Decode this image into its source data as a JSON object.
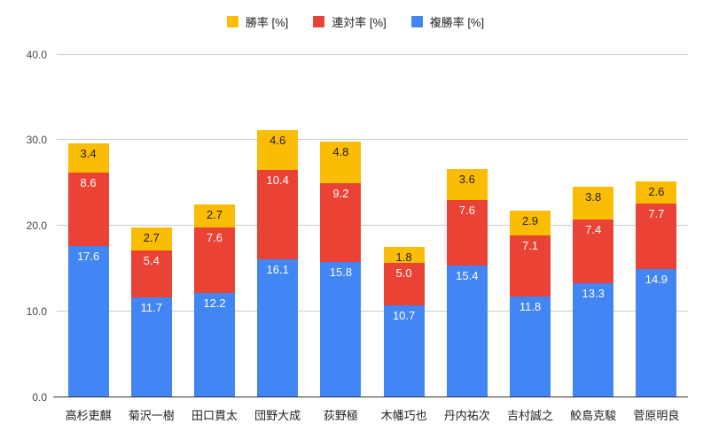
{
  "chart_data": {
    "type": "bar",
    "stacked": true,
    "title": "",
    "xlabel": "",
    "ylabel": "",
    "ylim": [
      0,
      40
    ],
    "yticks": [
      "0.0",
      "10.0",
      "20.0",
      "30.0",
      "40.0"
    ],
    "grid": true,
    "legend_position": "top",
    "categories": [
      "高杉吏麒",
      "菊沢一樹",
      "田口貫太",
      "団野大成",
      "荻野極",
      "木幡巧也",
      "丹内祐次",
      "吉村誠之",
      "鮫島克駿",
      "菅原明良"
    ],
    "series": [
      {
        "name": "勝率 [%]",
        "color": "#FBBC04",
        "label_color": "#212121",
        "values": [
          3.4,
          2.7,
          2.7,
          4.6,
          4.8,
          1.8,
          3.6,
          2.9,
          3.8,
          2.6
        ]
      },
      {
        "name": "連対率 [%]",
        "color": "#EA4335",
        "label_color": "#ffffff",
        "values": [
          8.6,
          5.4,
          7.6,
          10.4,
          9.2,
          5.0,
          7.6,
          7.1,
          7.4,
          7.7
        ]
      },
      {
        "name": "複勝率 [%]",
        "color": "#4285F4",
        "label_color": "#ffffff",
        "values": [
          17.6,
          11.7,
          12.2,
          16.1,
          15.8,
          10.7,
          15.4,
          11.8,
          13.3,
          14.9
        ]
      }
    ],
    "stack_order_top_to_bottom": [
      "勝率 [%]",
      "連対率 [%]",
      "複勝率 [%]"
    ],
    "colors": {
      "win": "#FBBC04",
      "quinella": "#EA4335",
      "show": "#4285F4",
      "gridline": "#cccccc",
      "axis_line": "#333333",
      "tick_text": "#444444",
      "category_text": "#222222"
    }
  }
}
